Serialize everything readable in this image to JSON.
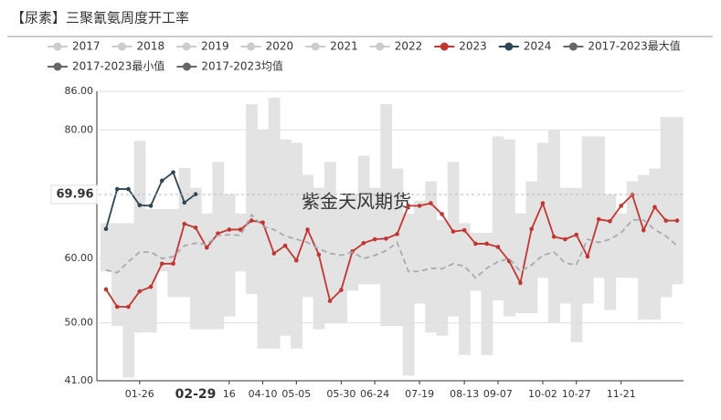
{
  "chart_data": {
    "type": "line",
    "title": "【尿素】三聚氰氨周度开工率",
    "watermark": "紫金天风期货",
    "categories": [
      null,
      null,
      null,
      "01-26",
      null,
      null,
      null,
      null,
      "02-29",
      null,
      null,
      "16",
      null,
      null,
      "04-10",
      null,
      null,
      "05-05",
      null,
      null,
      null,
      "05-30",
      null,
      null,
      "06-24",
      null,
      null,
      null,
      "07-19",
      null,
      null,
      null,
      "08-13",
      null,
      null,
      "09-07",
      null,
      null,
      null,
      "10-02",
      null,
      null,
      "10-27",
      null,
      null,
      null,
      "11-21",
      null,
      null,
      null,
      null,
      null
    ],
    "ylim": [
      41,
      86
    ],
    "yticks": [
      {
        "value": 41,
        "label": "41.00"
      },
      {
        "value": 50,
        "label": "50.00"
      },
      {
        "value": 60,
        "label": "60.00"
      },
      {
        "value": 80,
        "label": "80.00"
      },
      {
        "value": 86,
        "label": "86.00"
      }
    ],
    "grid": true,
    "crosshair": {
      "x": "02-29",
      "y": 69.96
    },
    "series": [
      {
        "name": "2017",
        "color": "#cccccc",
        "visible": false
      },
      {
        "name": "2018",
        "color": "#cccccc",
        "visible": false
      },
      {
        "name": "2019",
        "color": "#cccccc",
        "visible": false
      },
      {
        "name": "2020",
        "color": "#cccccc",
        "visible": false
      },
      {
        "name": "2021",
        "color": "#cccccc",
        "visible": false
      },
      {
        "name": "2022",
        "color": "#cccccc",
        "visible": false
      },
      {
        "name": "2023",
        "color": "#c23531",
        "style": "line",
        "values": [
          55.2,
          52.5,
          52.5,
          54.9,
          55.6,
          59.2,
          59.2,
          65.4,
          64.8,
          61.7,
          63.9,
          64.5,
          64.5,
          65.9,
          65.6,
          60.8,
          62.0,
          59.7,
          64.5,
          60.6,
          53.4,
          55.1,
          61.1,
          62.4,
          63.0,
          63.1,
          63.8,
          68.2,
          68.2,
          68.6,
          66.9,
          64.2,
          64.4,
          62.3,
          62.3,
          61.8,
          59.6,
          56.2,
          64.6,
          68.6,
          63.4,
          63.0,
          63.7,
          60.3,
          66.1,
          65.8,
          68.2,
          69.9,
          64.4,
          68.0,
          65.9,
          65.9
        ]
      },
      {
        "name": "2024",
        "color": "#2f4554",
        "style": "line",
        "values": [
          64.6,
          70.8,
          70.8,
          68.3,
          68.2,
          72.1,
          73.4,
          68.7,
          70.0,
          null,
          null,
          null,
          null,
          null,
          null,
          null,
          null,
          null,
          null,
          null,
          null,
          null,
          null,
          null,
          null,
          null,
          null,
          null,
          null,
          null,
          null,
          null,
          null,
          null,
          null,
          null,
          null,
          null,
          null,
          null,
          null,
          null,
          null,
          null,
          null,
          null,
          null,
          null,
          null,
          null,
          null,
          null
        ]
      },
      {
        "name": "2017-2023最大值",
        "color": "#666666",
        "style": "band-max",
        "values": [
          65.5,
          65.5,
          65.5,
          78.3,
          67.7,
          67.7,
          67.7,
          74.1,
          71.0,
          67.0,
          75.0,
          70.0,
          67.0,
          84.0,
          80.0,
          85.0,
          78.5,
          78.0,
          73.0,
          71.0,
          75.0,
          69.0,
          70.0,
          76.0,
          71.0,
          84.0,
          74.0,
          67.0,
          69.0,
          72.0,
          66.0,
          75.0,
          65.5,
          64.0,
          64.0,
          79.0,
          78.5,
          67.0,
          72.0,
          78.0,
          80.0,
          71.0,
          71.0,
          79.0,
          79.0,
          70.0,
          67.0,
          72.0,
          73.0,
          74.0,
          82.0,
          82.0
        ]
      },
      {
        "name": "2017-2023最小值",
        "color": "#666666",
        "style": "band-min",
        "values": [
          58.0,
          49.5,
          41.5,
          48.5,
          48.5,
          58.0,
          54.0,
          54.0,
          49.0,
          49.0,
          49.0,
          51.0,
          58.0,
          54.5,
          46.0,
          46.0,
          48.0,
          46.0,
          54.0,
          49.0,
          50.0,
          50.0,
          55.0,
          56.0,
          56.0,
          49.5,
          49.5,
          41.8,
          53.0,
          48.5,
          48.0,
          51.0,
          45.0,
          55.0,
          45.0,
          53.5,
          51.0,
          51.5,
          51.5,
          57.0,
          50.0,
          53.0,
          47.0,
          53.0,
          57.0,
          52.0,
          57.0,
          57.0,
          50.5,
          50.5,
          54.0,
          56.0
        ]
      },
      {
        "name": "2017-2023均值",
        "color": "#666666",
        "style": "dashed",
        "values": [
          58.2,
          57.8,
          59.5,
          61.0,
          61.0,
          60.0,
          60.3,
          62.0,
          62.4,
          62.2,
          63.6,
          63.7,
          63.6,
          66.8,
          65.0,
          64.5,
          63.5,
          63.0,
          62.5,
          61.5,
          60.8,
          60.5,
          61.0,
          60.0,
          60.5,
          61.2,
          62.5,
          58.0,
          58.0,
          58.5,
          58.4,
          59.2,
          58.8,
          57.0,
          58.5,
          59.5,
          60.0,
          58.0,
          59.0,
          60.5,
          61.0,
          59.3,
          59.0,
          63.0,
          62.5,
          63.0,
          64.0,
          66.0,
          66.0,
          64.5,
          63.5,
          62.0
        ]
      }
    ]
  }
}
